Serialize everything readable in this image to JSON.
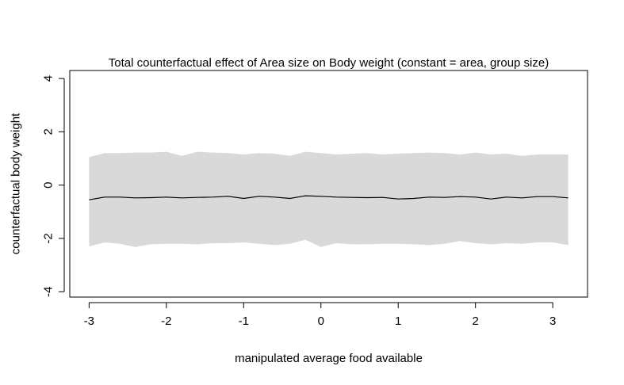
{
  "chart_data": {
    "type": "line",
    "title": "Total counterfactual effect of Area size on Body weight (constant = area, group size)",
    "xlabel": "manipulated average food available",
    "ylabel": "counterfactual body weight",
    "xlim": [
      -3.25,
      3.45
    ],
    "ylim": [
      -4.2,
      4.3
    ],
    "x_ticks": [
      -3,
      -2,
      -1,
      0,
      1,
      2,
      3
    ],
    "y_ticks": [
      -4,
      -2,
      0,
      2,
      4
    ],
    "grid": false,
    "legend": "none",
    "colors": {
      "line": "#000000",
      "band": "#d9d9d9",
      "frame": "#000000"
    },
    "series": [
      {
        "x": [
          -3.0,
          -2.8,
          -2.6,
          -2.4,
          -2.2,
          -2.0,
          -1.8,
          -1.6,
          -1.4,
          -1.2,
          -1.0,
          -0.8,
          -0.6,
          -0.4,
          -0.2,
          0.0,
          0.2,
          0.4,
          0.6,
          0.8,
          1.0,
          1.2,
          1.4,
          1.6,
          1.8,
          2.0,
          2.2,
          2.4,
          2.6,
          2.8,
          3.0,
          3.2
        ],
        "mean": [
          -0.55,
          -0.45,
          -0.45,
          -0.48,
          -0.47,
          -0.45,
          -0.48,
          -0.46,
          -0.45,
          -0.42,
          -0.5,
          -0.42,
          -0.45,
          -0.5,
          -0.4,
          -0.42,
          -0.45,
          -0.46,
          -0.47,
          -0.46,
          -0.52,
          -0.5,
          -0.45,
          -0.46,
          -0.43,
          -0.45,
          -0.52,
          -0.45,
          -0.48,
          -0.43,
          -0.43,
          -0.48
        ],
        "upper": [
          1.05,
          1.2,
          1.2,
          1.22,
          1.22,
          1.25,
          1.1,
          1.25,
          1.22,
          1.2,
          1.15,
          1.2,
          1.18,
          1.1,
          1.25,
          1.2,
          1.15,
          1.18,
          1.2,
          1.15,
          1.18,
          1.2,
          1.22,
          1.2,
          1.15,
          1.22,
          1.15,
          1.18,
          1.1,
          1.15,
          1.15,
          1.15
        ],
        "lower": [
          -2.3,
          -2.15,
          -2.2,
          -2.32,
          -2.22,
          -2.2,
          -2.2,
          -2.22,
          -2.18,
          -2.18,
          -2.15,
          -2.2,
          -2.25,
          -2.2,
          -2.05,
          -2.32,
          -2.18,
          -2.22,
          -2.22,
          -2.2,
          -2.2,
          -2.22,
          -2.25,
          -2.2,
          -2.1,
          -2.18,
          -2.22,
          -2.18,
          -2.2,
          -2.15,
          -2.15,
          -2.25
        ]
      }
    ]
  }
}
